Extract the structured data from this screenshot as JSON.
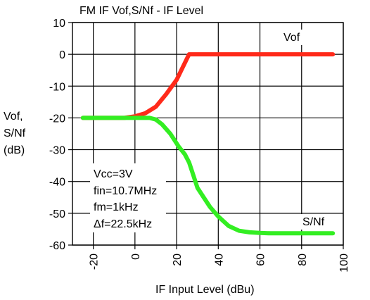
{
  "chart_data": {
    "type": "line",
    "title": "FM IF Vof,S/Nf - IF Level",
    "xlabel": "IF Input Level (dBu)",
    "ylabel_lines": [
      "Vof,",
      "S/Nf",
      "(dB)"
    ],
    "xlim": [
      -30,
      100
    ],
    "ylim": [
      -60,
      10
    ],
    "xticks": [
      -20,
      0,
      20,
      40,
      60,
      80,
      100
    ],
    "xtick_labels": [
      "-20",
      "0",
      "20",
      "40",
      "60",
      "80",
      "100"
    ],
    "yticks": [
      10,
      0,
      -10,
      -20,
      -30,
      -40,
      -50,
      -60
    ],
    "ytick_labels": [
      "10",
      "0",
      "-10",
      "-20",
      "-30",
      "-40",
      "-50",
      "-60"
    ],
    "grid": true,
    "series": [
      {
        "name": "Vof",
        "color": "#ff2a1a",
        "x": [
          -25,
          -5,
          0,
          5,
          10,
          15,
          20,
          26,
          95
        ],
        "y": [
          -20,
          -20,
          -19.5,
          -18.5,
          -16.5,
          -12.5,
          -8,
          0,
          0
        ]
      },
      {
        "name": "S/Nf",
        "color": "#33ee22",
        "x": [
          -25,
          4,
          7,
          10,
          13,
          17,
          21,
          24,
          26,
          28,
          30,
          33,
          36,
          40,
          45,
          50,
          55,
          60,
          65,
          70,
          75,
          80,
          85,
          90,
          95
        ],
        "y": [
          -20,
          -20,
          -20,
          -20.5,
          -22,
          -25,
          -29,
          -31.5,
          -34,
          -38,
          -42,
          -45,
          -48,
          -51,
          -54,
          -55.5,
          -56,
          -56.2,
          -56.3,
          -56.3,
          -56.3,
          -56.3,
          -56.3,
          -56.3,
          -56.3
        ]
      }
    ],
    "annotations": [
      "Vcc=3V",
      "fin=10.7MHz",
      "fm=1kHz",
      "Δf=22.5kHz"
    ]
  }
}
